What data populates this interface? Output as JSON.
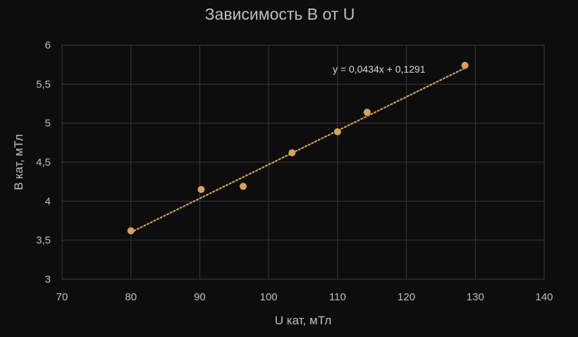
{
  "chart_data": {
    "type": "scatter",
    "title": "Зависимость B от U",
    "xlabel": "U кат, мТл",
    "ylabel": "B кат, мТл",
    "xlim": [
      70,
      140
    ],
    "ylim": [
      3,
      6
    ],
    "x_ticks": [
      70,
      80,
      90,
      100,
      110,
      120,
      130,
      140
    ],
    "x_tick_labels": [
      "70",
      "80",
      "90",
      "100",
      "110",
      "120",
      "130",
      "140"
    ],
    "y_ticks": [
      3,
      3.5,
      4,
      4.5,
      5,
      5.5,
      6
    ],
    "y_tick_labels": [
      "3",
      "3,5",
      "4",
      "4,5",
      "5",
      "5,5",
      "6"
    ],
    "grid": true,
    "legend": "none",
    "series": [
      {
        "x": [
          80,
          90.2,
          96.3,
          103.4,
          110,
          114.3,
          128.5
        ],
        "y": [
          3.62,
          4.15,
          4.19,
          4.62,
          4.89,
          5.14,
          5.74
        ],
        "color": "#d4a35b"
      }
    ],
    "trendline": {
      "type": "linear",
      "slope": 0.0434,
      "intercept": 0.1291,
      "x_range": [
        80,
        128.5
      ],
      "equation": "y = 0,0434x + 0,1291",
      "color": "#d4a35b"
    }
  }
}
